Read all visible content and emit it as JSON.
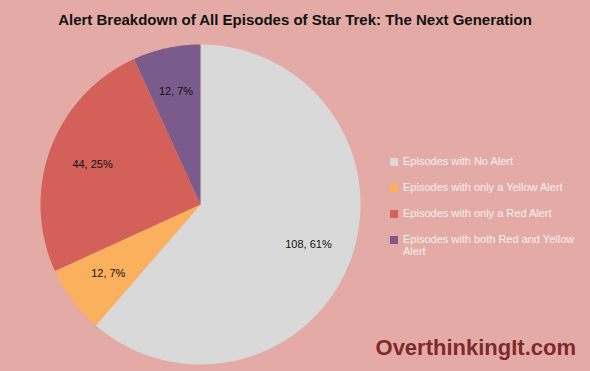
{
  "chart_data": {
    "type": "pie",
    "title": "Alert Breakdown of All Episodes of Star Trek: The Next Generation",
    "categories": [
      "Episodes with No Alert",
      "Episodes with only a Yellow Alert",
      "Episodes with only a Red Alert",
      "Episodes with both Red and Yellow Alert"
    ],
    "values": [
      108,
      12,
      44,
      12
    ],
    "value_labels": [
      "108, 61%",
      "12, 7%",
      "44, 25%",
      "12, 7%"
    ],
    "colors": [
      "#d9d9d9",
      "#fbb05e",
      "#d4605a",
      "#7b5b8c"
    ],
    "data_labels": true,
    "legend": "right",
    "annotations": [
      "OverthinkingIt.com"
    ]
  }
}
